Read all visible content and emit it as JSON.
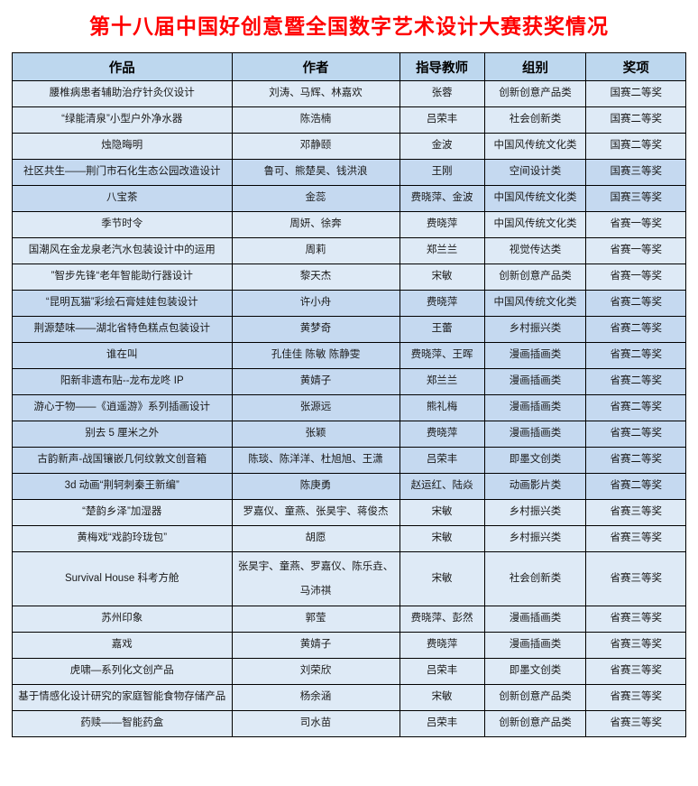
{
  "page": {
    "title": "第十八届中国好创意暨全国数字艺术设计大赛获奖情况"
  },
  "colors": {
    "title_text": "#FF0000",
    "header_bg": "#BDD7EE",
    "row_light": "#DEEAF6",
    "row_dark": "#C5D9F0",
    "border": "#000000"
  },
  "table": {
    "headers": [
      "作品",
      "作者",
      "指导教师",
      "组别",
      "奖项"
    ],
    "column_widths_pct": [
      32.6,
      24.9,
      12.6,
      15.1,
      14.8
    ],
    "rows": [
      {
        "work": "腰椎病患者辅助治疗针灸仪设计",
        "authors": "刘涛、马辉、林嘉欢",
        "advisor": "张蓉",
        "group": "创新创意产品类",
        "award": "国赛二等奖",
        "shade": "light"
      },
      {
        "work": "“绿能清泉”小型户外净水器",
        "authors": "陈浩楠",
        "advisor": "吕荣丰",
        "group": "社会创新类",
        "award": "国赛二等奖",
        "shade": "light"
      },
      {
        "work": "烛隐晦明",
        "authors": "邓静颐",
        "advisor": "金波",
        "group": "中国风传统文化类",
        "award": "国赛二等奖",
        "shade": "light"
      },
      {
        "work": "社区共生——荆门市石化生态公园改造设计",
        "authors": "鲁可、熊楚昊、钱洪浪",
        "advisor": "王刚",
        "group": "空间设计类",
        "award": "国赛三等奖",
        "shade": "dark"
      },
      {
        "work": "八宝茶",
        "authors": "金蕊",
        "advisor": "费晓萍、金波",
        "group": "中国风传统文化类",
        "award": "国赛三等奖",
        "shade": "dark"
      },
      {
        "work": "季节时令",
        "authors": "周妍、徐奔",
        "advisor": "费晓萍",
        "group": "中国风传统文化类",
        "award": "省赛一等奖",
        "shade": "light"
      },
      {
        "work": "国潮风在金龙泉老汽水包装设计中的运用",
        "authors": "周莉",
        "advisor": "郑兰兰",
        "group": "视觉传达类",
        "award": "省赛一等奖",
        "shade": "light"
      },
      {
        "work": "”智步先锋“老年智能助行器设计",
        "authors": "黎天杰",
        "advisor": "宋敏",
        "group": "创新创意产品类",
        "award": "省赛一等奖",
        "shade": "light"
      },
      {
        "work": "“昆明瓦猫”彩绘石膏娃娃包装设计",
        "authors": "许小舟",
        "advisor": "费晓萍",
        "group": "中国风传统文化类",
        "award": "省赛二等奖",
        "shade": "dark"
      },
      {
        "work": "荆源楚味——湖北省特色糕点包装设计",
        "authors": "黄梦奇",
        "advisor": "王蕾",
        "group": "乡村振兴类",
        "award": "省赛二等奖",
        "shade": "dark"
      },
      {
        "work": "谁在叫",
        "authors": "孔佳佳 陈敏 陈静雯",
        "advisor": "费晓萍、王晖",
        "group": "漫画插画类",
        "award": "省赛二等奖",
        "shade": "dark"
      },
      {
        "work": "阳新非遗布贴--龙布龙咚 IP",
        "authors": "黄婧子",
        "advisor": "郑兰兰",
        "group": "漫画插画类",
        "award": "省赛二等奖",
        "shade": "dark"
      },
      {
        "work": "游心于物——《逍遥游》系列插画设计",
        "authors": "张源远",
        "advisor": "熊礼梅",
        "group": "漫画插画类",
        "award": "省赛二等奖",
        "shade": "dark"
      },
      {
        "work": "别去 5 厘米之外",
        "authors": "张颖",
        "advisor": "费晓萍",
        "group": "漫画插画类",
        "award": "省赛二等奖",
        "shade": "dark"
      },
      {
        "work": "古韵新声-战国镶嵌几何纹敦文创音箱",
        "authors": "陈琰、陈洋洋、杜旭旭、王潇",
        "advisor": "吕荣丰",
        "group": "即墨文创类",
        "award": "省赛二等奖",
        "shade": "dark"
      },
      {
        "work": "3d 动画“荆轲刺秦王新编”",
        "authors": "陈庚勇",
        "advisor": "赵运红、陆焱",
        "group": "动画影片类",
        "award": "省赛二等奖",
        "shade": "dark"
      },
      {
        "work": "“楚韵乡泽”加湿器",
        "authors": "罗嘉仪、童燕、张昊宇、蒋俊杰",
        "advisor": "宋敏",
        "group": "乡村振兴类",
        "award": "省赛三等奖",
        "shade": "light"
      },
      {
        "work": "黄梅戏“戏韵玲珑包”",
        "authors": "胡愿",
        "advisor": "宋敏",
        "group": "乡村振兴类",
        "award": "省赛三等奖",
        "shade": "light"
      },
      {
        "work": "Survival House 科考方舱",
        "authors": "张昊宇、童燕、罗嘉仪、陈乐垚、马沛祺",
        "advisor": "宋敏",
        "group": "社会创新类",
        "award": "省赛三等奖",
        "shade": "light"
      },
      {
        "work": "苏州印象",
        "authors": "郭莹",
        "advisor": "费晓萍、彭然",
        "group": "漫画插画类",
        "award": "省赛三等奖",
        "shade": "light"
      },
      {
        "work": "嘉戏",
        "authors": "黄婧子",
        "advisor": "费晓萍",
        "group": "漫画插画类",
        "award": "省赛三等奖",
        "shade": "light"
      },
      {
        "work": "虎啸—系列化文创产品",
        "authors": "刘荣欣",
        "advisor": "吕荣丰",
        "group": "即墨文创类",
        "award": "省赛三等奖",
        "shade": "light"
      },
      {
        "work": "基于情感化设计研究的家庭智能食物存储产品",
        "authors": "杨余涵",
        "advisor": "宋敏",
        "group": "创新创意产品类",
        "award": "省赛三等奖",
        "shade": "light"
      },
      {
        "work": "药赎——智能药盒",
        "authors": "司水苗",
        "advisor": "吕荣丰",
        "group": "创新创意产品类",
        "award": "省赛三等奖",
        "shade": "light"
      }
    ]
  }
}
